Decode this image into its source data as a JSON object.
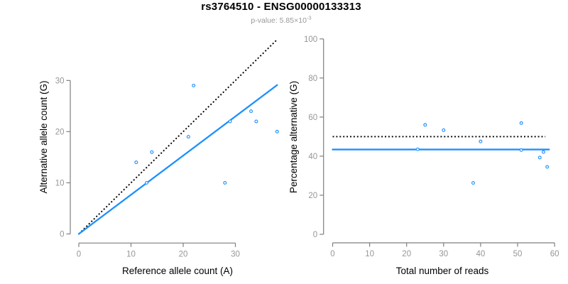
{
  "header": {
    "title": "rs3764510 - ENSG00000133313",
    "pvalue_label": "p-value: ",
    "pvalue_mantissa": "5.85",
    "pvalue_times_base": "×10",
    "pvalue_exponent": "-3"
  },
  "colors": {
    "fit_line": "#1E90FF",
    "point_stroke": "#1E90FF",
    "point_fill": "#ffffff",
    "identity_line": "#000000",
    "axis": "#7f7f7f",
    "tick_label": "#969696",
    "axis_label": "#000000",
    "title": "#000000",
    "subtitle": "#999999"
  },
  "chart_data": [
    {
      "type": "scatter",
      "title": "",
      "xlabel": "Reference allele count (A)",
      "ylabel": "Alternative allele count (G)",
      "xlim": [
        0,
        38
      ],
      "ylim": [
        0,
        38
      ],
      "xticks": [
        0,
        10,
        20,
        30
      ],
      "yticks": [
        0,
        10,
        20,
        30
      ],
      "grid": false,
      "legend": null,
      "points": [
        [
          11,
          14
        ],
        [
          13,
          10
        ],
        [
          14,
          16
        ],
        [
          21,
          19
        ],
        [
          22,
          29
        ],
        [
          28,
          10
        ],
        [
          29,
          22
        ],
        [
          33,
          24
        ],
        [
          34,
          22
        ],
        [
          38,
          20
        ]
      ],
      "lines": [
        {
          "name": "identity-line",
          "meaning": "y = x reference",
          "style": "dotted",
          "color_key": "identity_line",
          "x1": 0,
          "y1": 0,
          "x2": 38,
          "y2": 38
        },
        {
          "name": "fit-line",
          "meaning": "fitted ratio alt/ref = 0.765",
          "style": "solid",
          "color_key": "fit_line",
          "x1": 0,
          "y1": 0,
          "x2": 38,
          "y2": 29.1
        }
      ]
    },
    {
      "type": "scatter",
      "title": "",
      "xlabel": "Total number of reads",
      "ylabel": "Percentage alternative (G)",
      "xlim": [
        0,
        60
      ],
      "ylim": [
        0,
        100
      ],
      "xticks": [
        0,
        10,
        20,
        30,
        40,
        50,
        60
      ],
      "yticks": [
        0,
        20,
        40,
        60,
        80,
        100
      ],
      "grid": false,
      "legend": null,
      "points": [
        [
          23,
          43.5
        ],
        [
          25,
          56
        ],
        [
          30,
          53.3
        ],
        [
          38,
          26.3
        ],
        [
          40,
          47.5
        ],
        [
          51,
          56.9
        ],
        [
          51,
          43.1
        ],
        [
          56,
          39.3
        ],
        [
          57,
          42.1
        ],
        [
          58,
          34.5
        ]
      ],
      "lines": [
        {
          "name": "expected-50pct-line",
          "meaning": "expected 50% line",
          "style": "dotted",
          "color_key": "identity_line",
          "x1": 0,
          "y1": 50,
          "x2": 57.5,
          "y2": 50
        },
        {
          "name": "mean-percentage-line",
          "meaning": "overall alternative fraction 43.4%",
          "style": "solid",
          "color_key": "fit_line",
          "x1": 0,
          "y1": 43.4,
          "x2": 58.5,
          "y2": 43.4
        }
      ]
    }
  ]
}
